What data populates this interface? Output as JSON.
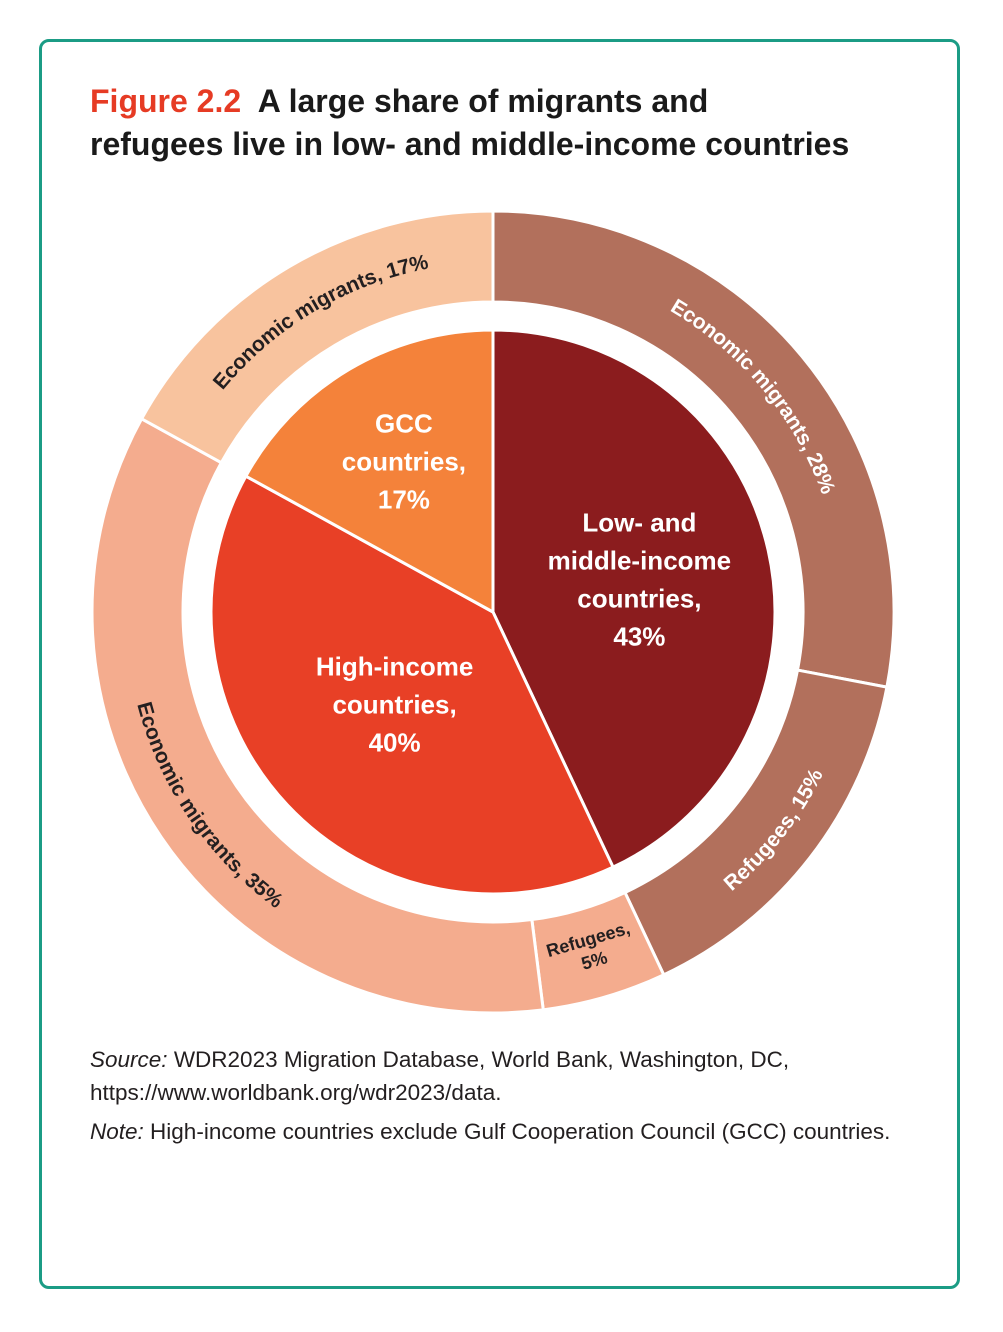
{
  "figure": {
    "number": "Figure 2.2",
    "title": "A large share of migrants and refugees live in low- and middle-income countries"
  },
  "chart_data": {
    "type": "pie",
    "variant": "nested-donut",
    "inner": [
      {
        "label": "Low- and middle-income countries",
        "value": 43,
        "label_lines": [
          "Low- and",
          "middle-income",
          "countries,",
          "43%"
        ],
        "color": "#8b1c1e"
      },
      {
        "label": "High-income countries",
        "value": 40,
        "label_lines": [
          "High-income",
          "countries,",
          "40%"
        ],
        "color": "#e84026"
      },
      {
        "label": "GCC countries",
        "value": 17,
        "label_lines": [
          "GCC",
          "countries,",
          "17%"
        ],
        "color": "#f4823a"
      }
    ],
    "outer": [
      {
        "label": "Economic migrants, 28%",
        "value": 28,
        "group": "Low- and middle-income countries",
        "color": "#b2705c"
      },
      {
        "label": "Refugees, 15%",
        "value": 15,
        "group": "Low- and middle-income countries",
        "color": "#b2705c"
      },
      {
        "label": "Refugees, 5%",
        "value": 5,
        "group": "High-income countries",
        "color": "#f4ac8e",
        "label_lines": [
          "Refugees,",
          "5%"
        ]
      },
      {
        "label": "Economic migrants, 35%",
        "value": 35,
        "group": "High-income countries",
        "color": "#f4ac8e"
      },
      {
        "label": "Economic migrants, 17%",
        "value": 17,
        "group": "GCC countries",
        "color": "#f8c39e"
      }
    ]
  },
  "notes": {
    "source_label": "Source:",
    "source_text": "WDR2023 Migration Database, World Bank, Washington, DC, https://www.worldbank.org/wdr2023/data.",
    "note_label": "Note:",
    "note_text": "High-income countries exclude Gulf Cooperation Council (GCC) countries."
  }
}
